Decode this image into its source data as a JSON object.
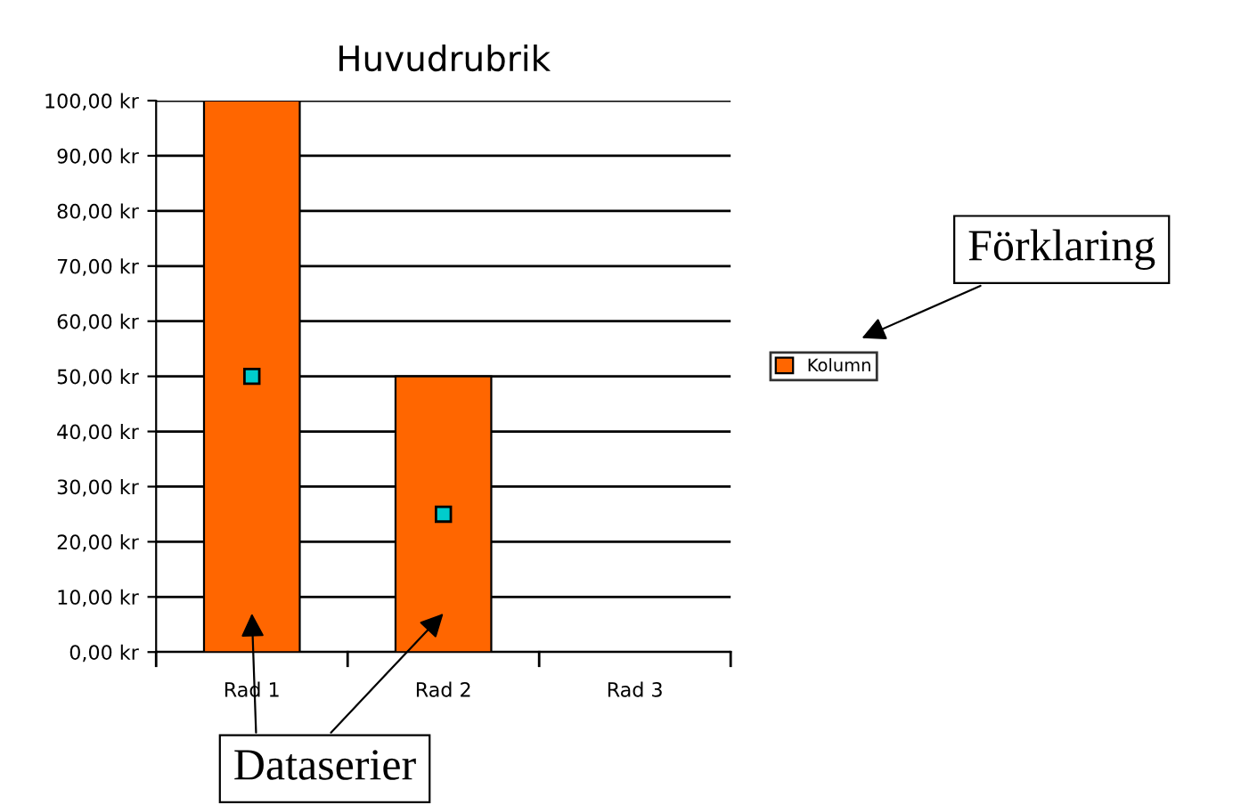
{
  "chart_data": {
    "type": "bar",
    "title": "Huvudrubrik",
    "categories": [
      "Rad 1",
      "Rad 2",
      "Rad 3"
    ],
    "series": [
      {
        "name": "Kolumn",
        "color": "#ff6600",
        "values": [
          100,
          50,
          null
        ]
      },
      {
        "type": "scatter",
        "color": "#00cccc",
        "values": [
          50,
          25,
          null
        ],
        "marker": "square"
      }
    ],
    "ylim": [
      0,
      100
    ],
    "yticks": [
      {
        "value": 0,
        "label": "0,00 kr"
      },
      {
        "value": 10,
        "label": "10,00 kr"
      },
      {
        "value": 20,
        "label": "20,00 kr"
      },
      {
        "value": 30,
        "label": "30,00 kr"
      },
      {
        "value": 40,
        "label": "40,00 kr"
      },
      {
        "value": 50,
        "label": "50,00 kr"
      },
      {
        "value": 60,
        "label": "60,00 kr"
      },
      {
        "value": 70,
        "label": "70,00 kr"
      },
      {
        "value": 80,
        "label": "80,00 kr"
      },
      {
        "value": 90,
        "label": "90,00 kr"
      },
      {
        "value": 100,
        "label": "100,00 kr"
      }
    ],
    "grid": "y",
    "legend": "right",
    "annotations": [
      "Förklaring",
      "Dataserier"
    ]
  }
}
